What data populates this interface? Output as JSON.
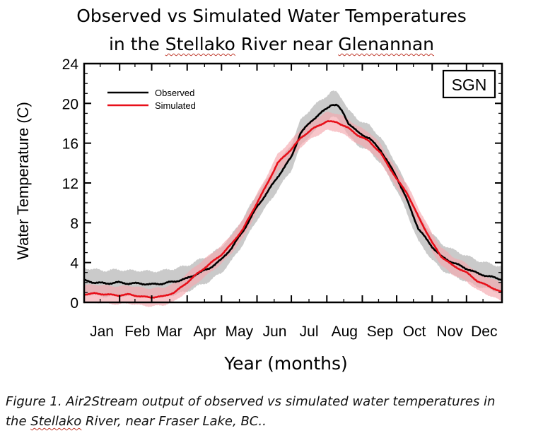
{
  "title_line1": "Observed vs Simulated Water Temperatures",
  "title_line2_pre": "in the ",
  "title_line2_river": "Stellako",
  "title_line2_mid": " River near ",
  "title_line2_place": "Glenannan",
  "caption_line1": "Figure 1. Air2Stream output of observed vs simulated water temperatures in",
  "caption_line2_pre": "the ",
  "caption_line2_river": "Stellako",
  "caption_line2_post": " River, near Fraser Lake, BC..",
  "colors": {
    "observed": "#000000",
    "simulated": "#e8101a",
    "observed_band": "#b8b8b8",
    "simulated_band": "#f5a8ad"
  },
  "chart_data": {
    "type": "line",
    "xlabel": "Year (months)",
    "ylabel": "Water Temperature (C)",
    "station_label": "SGN",
    "ylim": [
      0,
      24
    ],
    "yticks": [
      0,
      4,
      8,
      12,
      16,
      20,
      24
    ],
    "xlim": [
      1,
      366
    ],
    "month_labels": [
      "Jan",
      "Feb",
      "Mar",
      "Apr",
      "May",
      "Jun",
      "Jul",
      "Aug",
      "Sep",
      "Oct",
      "Nov",
      "Dec"
    ],
    "legend_position": "top-left",
    "grid": false,
    "series": [
      {
        "name": "Observed",
        "x": [
          1,
          10,
          20,
          31,
          40,
          50,
          59,
          70,
          80,
          91,
          100,
          110,
          121,
          130,
          140,
          152,
          160,
          170,
          182,
          190,
          200,
          213,
          217,
          222,
          227,
          232,
          240,
          250,
          260,
          274,
          283,
          293,
          305,
          313,
          323,
          335,
          345,
          355,
          366
        ],
        "y": [
          2.2,
          2.0,
          1.9,
          2.0,
          1.9,
          1.9,
          1.8,
          1.9,
          2.1,
          2.4,
          2.9,
          3.4,
          4.3,
          5.5,
          7.2,
          9.6,
          10.9,
          12.6,
          14.6,
          17.0,
          18.3,
          19.5,
          19.9,
          19.8,
          19.1,
          18.0,
          17.1,
          16.5,
          15.3,
          12.6,
          10.3,
          7.4,
          5.6,
          4.6,
          4.0,
          3.4,
          2.9,
          2.6,
          2.3
        ]
      },
      {
        "name": "Simulated",
        "x": [
          1,
          10,
          20,
          31,
          40,
          50,
          59,
          70,
          80,
          91,
          100,
          110,
          121,
          130,
          140,
          152,
          160,
          170,
          182,
          190,
          200,
          213,
          222,
          232,
          240,
          250,
          260,
          274,
          283,
          293,
          305,
          313,
          323,
          335,
          345,
          355,
          366
        ],
        "y": [
          0.8,
          0.9,
          0.8,
          0.7,
          0.8,
          0.6,
          0.5,
          0.6,
          1.0,
          2.0,
          2.9,
          3.8,
          4.8,
          5.9,
          7.4,
          10.0,
          11.7,
          14.0,
          15.4,
          16.5,
          17.4,
          18.2,
          18.1,
          17.5,
          16.8,
          16.2,
          15.0,
          12.4,
          11.0,
          8.6,
          6.0,
          4.6,
          3.7,
          3.0,
          2.1,
          1.6,
          1.0
        ]
      }
    ]
  }
}
